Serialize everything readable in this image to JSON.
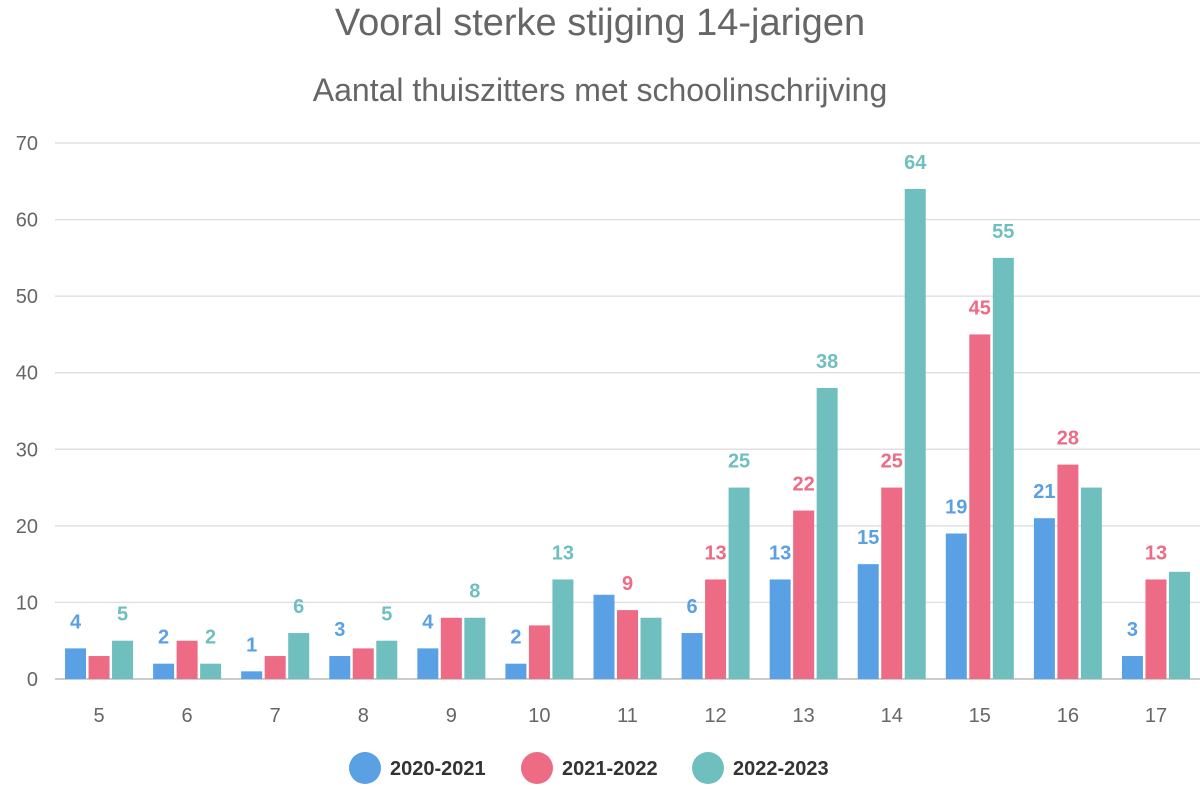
{
  "chart_data": {
    "type": "bar",
    "title": "Vooral sterke stijging 14-jarigen",
    "subtitle": "Aantal thuiszitters met schoolinschrijving",
    "xlabel": "",
    "ylabel": "",
    "ylim": [
      0,
      70
    ],
    "yticks": [
      0,
      10,
      20,
      30,
      40,
      50,
      60,
      70
    ],
    "grid": true,
    "legend_position": "bottom",
    "categories": [
      "5",
      "6",
      "7",
      "8",
      "9",
      "10",
      "11",
      "12",
      "13",
      "14",
      "15",
      "16",
      "17"
    ],
    "series": [
      {
        "name": "2020-2021",
        "color": "#5aa0e4",
        "values": [
          4,
          2,
          1,
          3,
          4,
          2,
          11,
          6,
          13,
          15,
          19,
          21,
          3
        ],
        "labeled": [
          true,
          true,
          true,
          true,
          true,
          true,
          false,
          true,
          true,
          true,
          true,
          true,
          true
        ]
      },
      {
        "name": "2021-2022",
        "color": "#ed6b84",
        "values": [
          3,
          5,
          3,
          4,
          8,
          7,
          9,
          13,
          22,
          25,
          45,
          28,
          13
        ],
        "labeled": [
          false,
          false,
          false,
          false,
          false,
          false,
          true,
          true,
          true,
          true,
          true,
          true,
          true
        ]
      },
      {
        "name": "2022-2023",
        "color": "#6fbfbf",
        "values": [
          5,
          2,
          6,
          5,
          8,
          13,
          8,
          25,
          38,
          64,
          55,
          25,
          14
        ],
        "labeled": [
          true,
          true,
          true,
          true,
          true,
          true,
          false,
          true,
          true,
          true,
          true,
          false,
          false
        ]
      }
    ]
  }
}
